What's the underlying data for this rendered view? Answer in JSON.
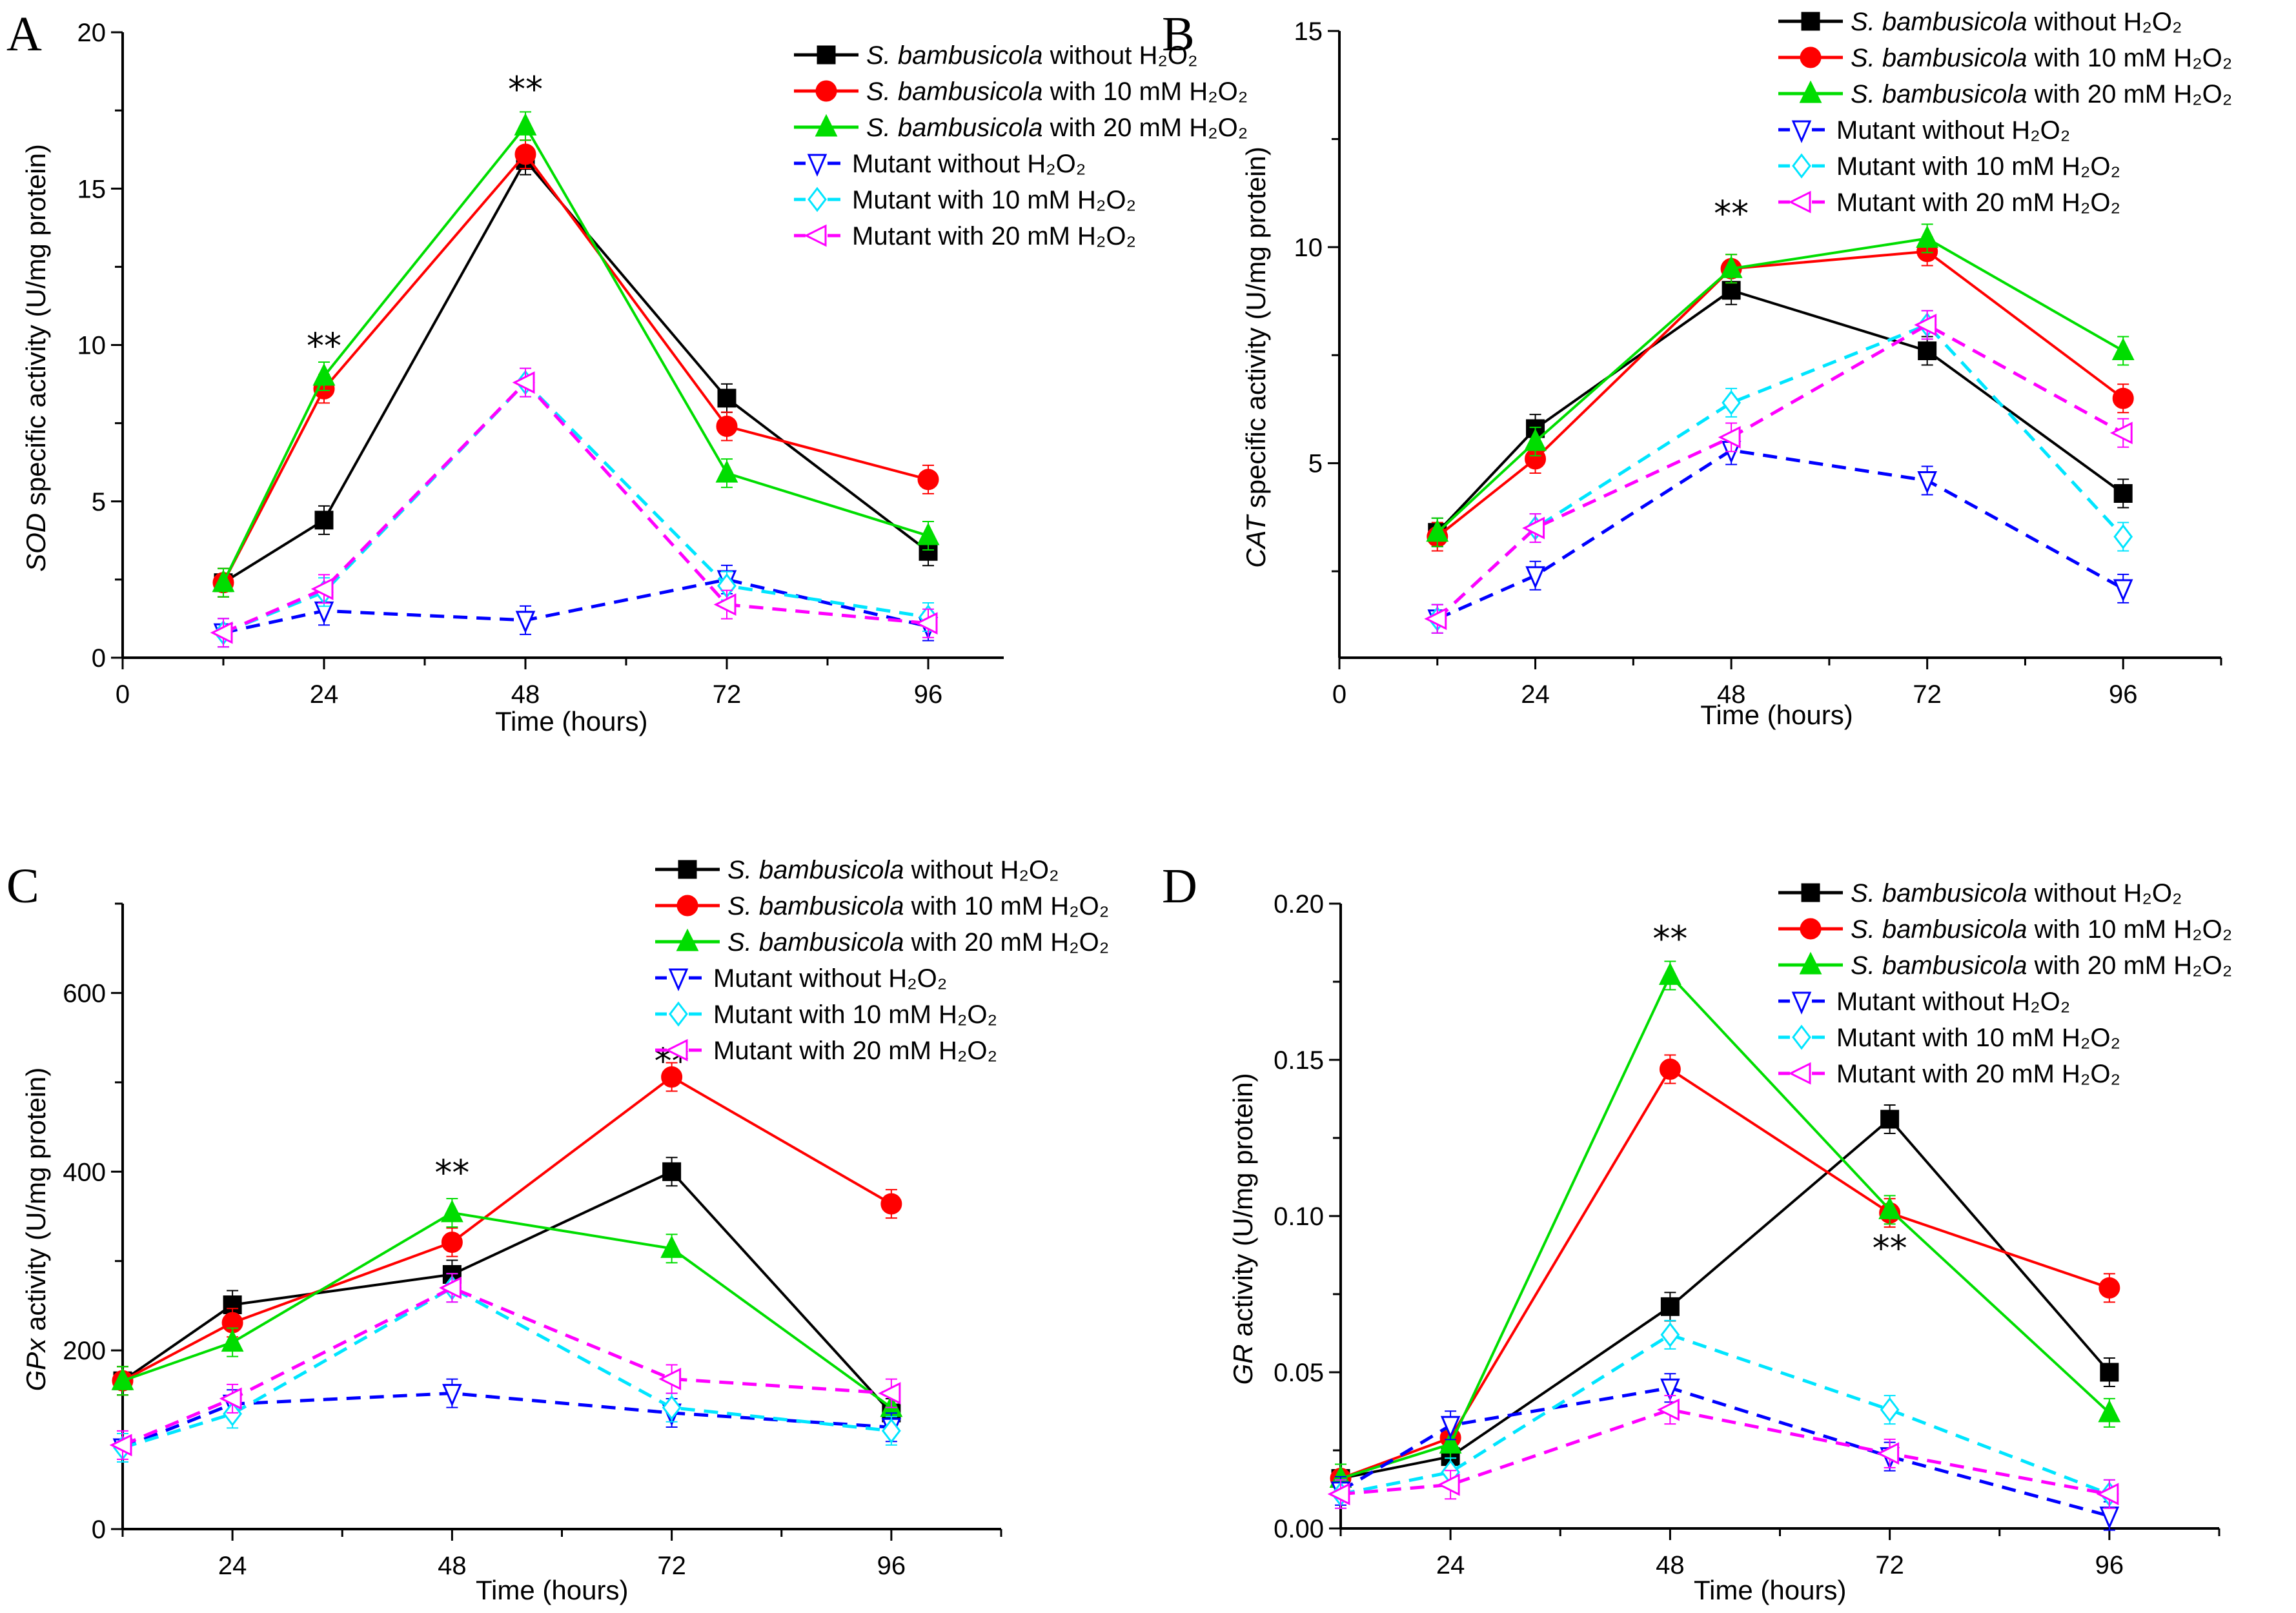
{
  "figure": {
    "series_styles": [
      {
        "key": "wt0",
        "color": "#000000",
        "marker": "square",
        "filled": true,
        "dashed": false
      },
      {
        "key": "wt10",
        "color": "#ff0000",
        "marker": "circle",
        "filled": true,
        "dashed": false
      },
      {
        "key": "wt20",
        "color": "#00dd00",
        "marker": "triangle-up",
        "filled": true,
        "dashed": false
      },
      {
        "key": "m0",
        "color": "#0000ff",
        "marker": "triangle-down",
        "filled": false,
        "dashed": true
      },
      {
        "key": "m10",
        "color": "#00e5ff",
        "marker": "diamond",
        "filled": false,
        "dashed": true
      },
      {
        "key": "m20",
        "color": "#ff00ff",
        "marker": "triangle-left",
        "filled": false,
        "dashed": true
      }
    ],
    "legend": [
      {
        "italic": "S. bambusicola",
        "rest": " without H₂O₂"
      },
      {
        "italic": "S. bambusicola",
        "rest": " with 10 mM H₂O₂"
      },
      {
        "italic": "S. bambusicola",
        "rest": " with 20 mM H₂O₂"
      },
      {
        "italic": "",
        "rest": "Mutant without H₂O₂"
      },
      {
        "italic": "",
        "rest": "Mutant with 10 mM H₂O₂"
      },
      {
        "italic": "",
        "rest": "Mutant with 20 mM H₂O₂"
      }
    ]
  },
  "chart_data": [
    {
      "panel": "A",
      "type": "line",
      "title": "",
      "xlabel": "Time (hours)",
      "ylabel_italic": "SOD",
      "ylabel": " specific activity (U/mg protein)",
      "x": [
        12,
        24,
        48,
        72,
        96
      ],
      "xlim": [
        0,
        105
      ],
      "xticks": [
        0,
        24,
        48,
        72,
        96
      ],
      "ylim": [
        0,
        20
      ],
      "yticks": [
        0,
        5,
        10,
        15,
        20
      ],
      "legend_position": "top-right",
      "grid": false,
      "series": [
        {
          "name": "S. bambusicola without H2O2",
          "values": [
            2.4,
            4.4,
            15.9,
            8.3,
            3.4
          ]
        },
        {
          "name": "S. bambusicola with 10 mM H2O2",
          "values": [
            2.4,
            8.6,
            16.1,
            7.4,
            5.7
          ]
        },
        {
          "name": "S. bambusicola with 20 mM H2O2",
          "values": [
            2.4,
            9.0,
            17.0,
            5.9,
            3.9
          ]
        },
        {
          "name": "Mutant without H2O2",
          "values": [
            0.8,
            1.5,
            1.2,
            2.5,
            1.0
          ]
        },
        {
          "name": "Mutant with 10 mM H2O2",
          "values": [
            0.8,
            2.1,
            8.8,
            2.3,
            1.3
          ]
        },
        {
          "name": "Mutant with 20 mM H2O2",
          "values": [
            0.8,
            2.2,
            8.8,
            1.7,
            1.1
          ]
        }
      ],
      "annotations": [
        {
          "text": "**",
          "x": 24,
          "y": 10.0
        },
        {
          "text": "**",
          "x": 48,
          "y": 18.2
        }
      ]
    },
    {
      "panel": "B",
      "type": "line",
      "title": "",
      "xlabel": "Time (hours)",
      "ylabel_italic": "CAT",
      "ylabel": " specific activity (U/mg protein)",
      "x": [
        12,
        24,
        48,
        72,
        96
      ],
      "xlim": [
        0,
        108
      ],
      "xticks": [
        0,
        24,
        48,
        72,
        96
      ],
      "ylim": [
        0.5,
        15
      ],
      "yticks": [
        5,
        10,
        15
      ],
      "legend_position": "top-right",
      "grid": false,
      "series": [
        {
          "name": "S. bambusicola without H2O2",
          "values": [
            3.4,
            5.8,
            9.0,
            7.6,
            4.3
          ]
        },
        {
          "name": "S. bambusicola with 10 mM H2O2",
          "values": [
            3.3,
            5.1,
            9.5,
            9.9,
            6.5
          ]
        },
        {
          "name": "S. bambusicola with 20 mM H2O2",
          "values": [
            3.4,
            5.5,
            9.5,
            10.2,
            7.6
          ]
        },
        {
          "name": "Mutant without H2O2",
          "values": [
            1.4,
            2.4,
            5.3,
            4.6,
            2.1
          ]
        },
        {
          "name": "Mutant with 10 mM H2O2",
          "values": [
            1.4,
            3.5,
            6.4,
            8.2,
            3.3
          ]
        },
        {
          "name": "Mutant with 20 mM H2O2",
          "values": [
            1.4,
            3.5,
            5.6,
            8.2,
            5.7
          ]
        }
      ],
      "annotations": [
        {
          "text": "**",
          "x": 48,
          "y": 10.8
        }
      ]
    },
    {
      "panel": "C",
      "type": "line",
      "title": "",
      "xlabel": "Time (hours)",
      "ylabel_italic": "GPx",
      "ylabel": " activity (U/mg protein)",
      "x": [
        12,
        24,
        48,
        72,
        96
      ],
      "xlim": [
        12,
        108
      ],
      "xticks": [
        24,
        48,
        72,
        96
      ],
      "ylim": [
        0,
        700
      ],
      "yticks": [
        0,
        200,
        400,
        600
      ],
      "legend_position": "top-right",
      "grid": false,
      "series": [
        {
          "name": "S. bambusicola without H2O2",
          "values": [
            166,
            251,
            285,
            400,
            130
          ]
        },
        {
          "name": "S. bambusicola with 10 mM H2O2",
          "values": [
            166,
            231,
            321,
            506,
            364
          ]
        },
        {
          "name": "S. bambusicola with 20 mM H2O2",
          "values": [
            166,
            209,
            354,
            314,
            136
          ]
        },
        {
          "name": "Mutant without H2O2",
          "values": [
            91,
            140,
            152,
            130,
            114
          ]
        },
        {
          "name": "Mutant with 10 mM H2O2",
          "values": [
            91,
            129,
            270,
            136,
            110
          ]
        },
        {
          "name": "Mutant with 20 mM H2O2",
          "values": [
            94,
            146,
            270,
            168,
            152
          ]
        }
      ],
      "annotations": [
        {
          "text": "**",
          "x": 48,
          "y": 400
        },
        {
          "text": "**",
          "x": 72,
          "y": 525
        }
      ]
    },
    {
      "panel": "D",
      "type": "line",
      "title": "",
      "xlabel": "Time (hours)",
      "ylabel_italic": "GR",
      "ylabel": " activity (U/mg protein)",
      "x": [
        12,
        24,
        48,
        72,
        96
      ],
      "xlim": [
        12,
        108
      ],
      "xticks": [
        24,
        48,
        72,
        96
      ],
      "ylim": [
        0,
        0.2
      ],
      "yticks": [
        0.0,
        0.05,
        0.1,
        0.15,
        0.2
      ],
      "ytick_labels": [
        "0.00",
        "0.05",
        "0.10",
        "0.15",
        "0.20"
      ],
      "legend_position": "top-right",
      "grid": false,
      "series": [
        {
          "name": "S. bambusicola without H2O2",
          "values": [
            0.016,
            0.023,
            0.071,
            0.131,
            0.05
          ]
        },
        {
          "name": "S. bambusicola with 10 mM H2O2",
          "values": [
            0.016,
            0.029,
            0.147,
            0.101,
            0.077
          ]
        },
        {
          "name": "S. bambusicola with 20 mM H2O2",
          "values": [
            0.016,
            0.027,
            0.177,
            0.102,
            0.037
          ]
        },
        {
          "name": "Mutant without H2O2",
          "values": [
            0.012,
            0.033,
            0.045,
            0.023,
            0.004
          ]
        },
        {
          "name": "Mutant with 10 mM H2O2",
          "values": [
            0.011,
            0.018,
            0.062,
            0.038,
            0.011
          ]
        },
        {
          "name": "Mutant with 20 mM H2O2",
          "values": [
            0.011,
            0.014,
            0.038,
            0.024,
            0.011
          ]
        }
      ],
      "annotations": [
        {
          "text": "**",
          "x": 48,
          "y": 0.189
        },
        {
          "text": "**",
          "x": 72,
          "y": 0.09
        }
      ]
    }
  ]
}
